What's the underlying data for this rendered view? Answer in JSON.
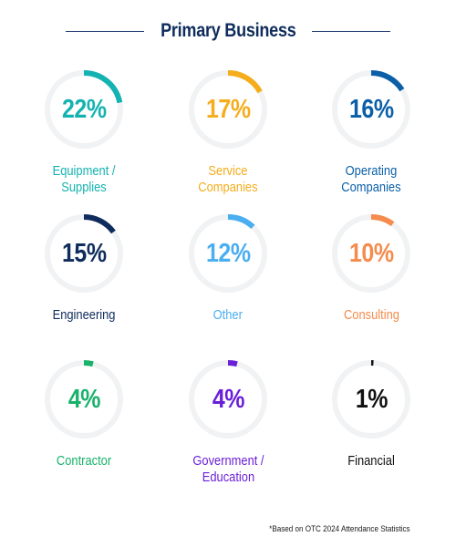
{
  "title": "Primary Business",
  "footnote": "*Based on OTC 2024 Attendance Statistics",
  "colors": {
    "track": "#f1f2f4",
    "title": "#0f2c5c"
  },
  "chart_data": {
    "type": "pie",
    "title": "Primary Business",
    "unit": "%",
    "categories": [
      "Equipment / Supplies",
      "Service Companies",
      "Operating Companies",
      "Engineering",
      "Other",
      "Consulting",
      "Contractor",
      "Government / Education",
      "Financial"
    ],
    "values": [
      22,
      17,
      16,
      15,
      12,
      10,
      4,
      4,
      1
    ],
    "items": [
      {
        "label_lines": [
          "Equipment /",
          "Supplies"
        ],
        "value": 22,
        "display": "22%",
        "color": "#14b3b1"
      },
      {
        "label_lines": [
          "Service",
          "Companies"
        ],
        "value": 17,
        "display": "17%",
        "color": "#f5ad1c"
      },
      {
        "label_lines": [
          "Operating",
          "Companies"
        ],
        "value": 16,
        "display": "16%",
        "color": "#0a5fa8"
      },
      {
        "label_lines": [
          "Engineering"
        ],
        "value": 15,
        "display": "15%",
        "color": "#0f2c5c"
      },
      {
        "label_lines": [
          "Other"
        ],
        "value": 12,
        "display": "12%",
        "color": "#4aaef0"
      },
      {
        "label_lines": [
          "Consulting"
        ],
        "value": 10,
        "display": "10%",
        "color": "#f58b4c"
      },
      {
        "label_lines": [
          "Contractor"
        ],
        "value": 4,
        "display": "4%",
        "color": "#18b26b"
      },
      {
        "label_lines": [
          "Government /",
          "Education"
        ],
        "value": 4,
        "display": "4%",
        "color": "#6a1fd8"
      },
      {
        "label_lines": [
          "Financial"
        ],
        "value": 1,
        "display": "1%",
        "color": "#111111"
      }
    ]
  }
}
